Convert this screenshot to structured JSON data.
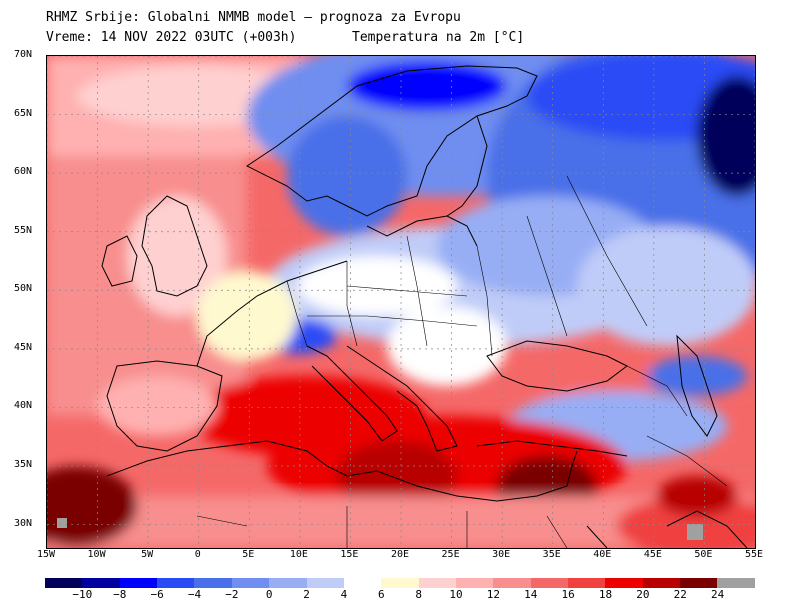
{
  "header": {
    "line1": "RHMZ Srbije: Globalni NMMB model — prognoza za Evropu",
    "line2": "Vreme: 14 NOV 2022 03UTC (+003h)",
    "variable": "Temperatura na 2m [°C]"
  },
  "axes": {
    "lat_labels": [
      "70N",
      "65N",
      "60N",
      "55N",
      "50N",
      "45N",
      "40N",
      "35N",
      "30N"
    ],
    "lon_labels": [
      "15W",
      "10W",
      "5W",
      "0",
      "5E",
      "10E",
      "15E",
      "20E",
      "25E",
      "30E",
      "35E",
      "40E",
      "45E",
      "50E",
      "55E"
    ],
    "lat_range": [
      28,
      70
    ],
    "lon_range": [
      -15,
      55
    ]
  },
  "colorbar": {
    "labels": [
      "-10",
      "-8",
      "-6",
      "-4",
      "-2",
      "0",
      "2",
      "4",
      "6",
      "8",
      "10",
      "12",
      "14",
      "16",
      "18",
      "20",
      "22",
      "24"
    ],
    "colors": [
      "#00005a",
      "#0000a0",
      "#0000ff",
      "#2a4cf5",
      "#4a6fe8",
      "#6f8ef0",
      "#97aef5",
      "#c0ccf8",
      "#ffffff",
      "#fff9cf",
      "#ffd0d0",
      "#ffb0b0",
      "#f88e8e",
      "#f56868",
      "#f04040",
      "#ec0000",
      "#b80000",
      "#7a0000",
      "#a0a0a0"
    ]
  }
}
